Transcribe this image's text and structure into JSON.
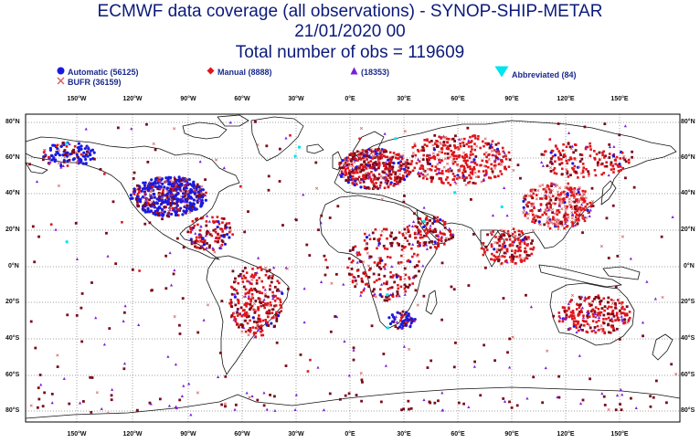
{
  "header": {
    "line1": "ECMWF data coverage (all observations) - SYNOP-SHIP-METAR",
    "line2": "21/01/2020 00",
    "line3": "Total number of obs = 119609"
  },
  "legend": [
    {
      "label": "Automatic (56125)",
      "symbol": "circle",
      "color": "#1a1adf"
    },
    {
      "label": "BUFR (36159)",
      "symbol": "cross",
      "color": "#d45a5a"
    },
    {
      "label": "Manual (8888)",
      "symbol": "diamond",
      "color": "#e0141a"
    },
    {
      "label": "(18353)",
      "symbol": "triangle-up",
      "color": "#7a1fd6"
    },
    {
      "label": "Abbreviated (84)",
      "symbol": "triangle-down",
      "color": "#00e4ee"
    }
  ],
  "axes": {
    "lon_ticks": [
      "150°W",
      "120°W",
      "90°W",
      "60°W",
      "30°W",
      "0°E",
      "30°E",
      "60°E",
      "90°E",
      "120°E",
      "150°E"
    ],
    "lat_ticks": [
      "80°N",
      "60°N",
      "40°N",
      "20°N",
      "0°N",
      "20°S",
      "40°S",
      "60°S",
      "80°S"
    ]
  },
  "colors": {
    "coast": "#111111",
    "grid": "#333333",
    "ship": "#7a0a1a",
    "manual": "#e0141a",
    "bufr": "#d45a5a",
    "automatic": "#1a1adf",
    "triangle": "#7a1fd6",
    "abbrev": "#00e4ee"
  }
}
